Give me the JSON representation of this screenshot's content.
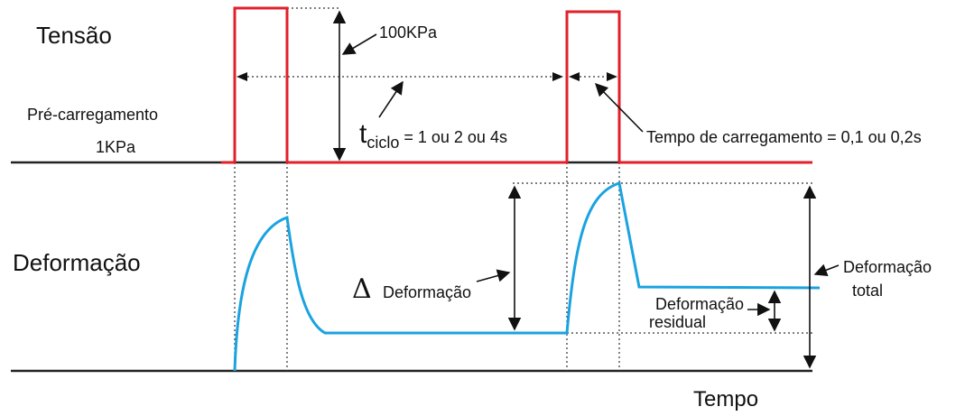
{
  "labels": {
    "tensao": "Tensão",
    "pre_carregamento": "Pré-carregamento",
    "preload_value": "1KPa",
    "peak_value": "100KPa",
    "t_main": "t",
    "t_sub": "ciclo",
    "t_rest": " = 1 ou 2 ou 4s",
    "loading_time": "Tempo de carregamento = 0,1 ou 0,2s",
    "deformacao": "Deformação",
    "delta_symbol": "Δ",
    "delta_label": "Deformação",
    "residual_line1": "Deformação",
    "residual_line2": "residual",
    "total_line1": "Deformação",
    "total_line2": "total",
    "tempo": "Tempo"
  },
  "colors": {
    "stress_curve": "#e2202a",
    "strain_curve": "#1aa3e0",
    "axis": "#222222"
  }
}
